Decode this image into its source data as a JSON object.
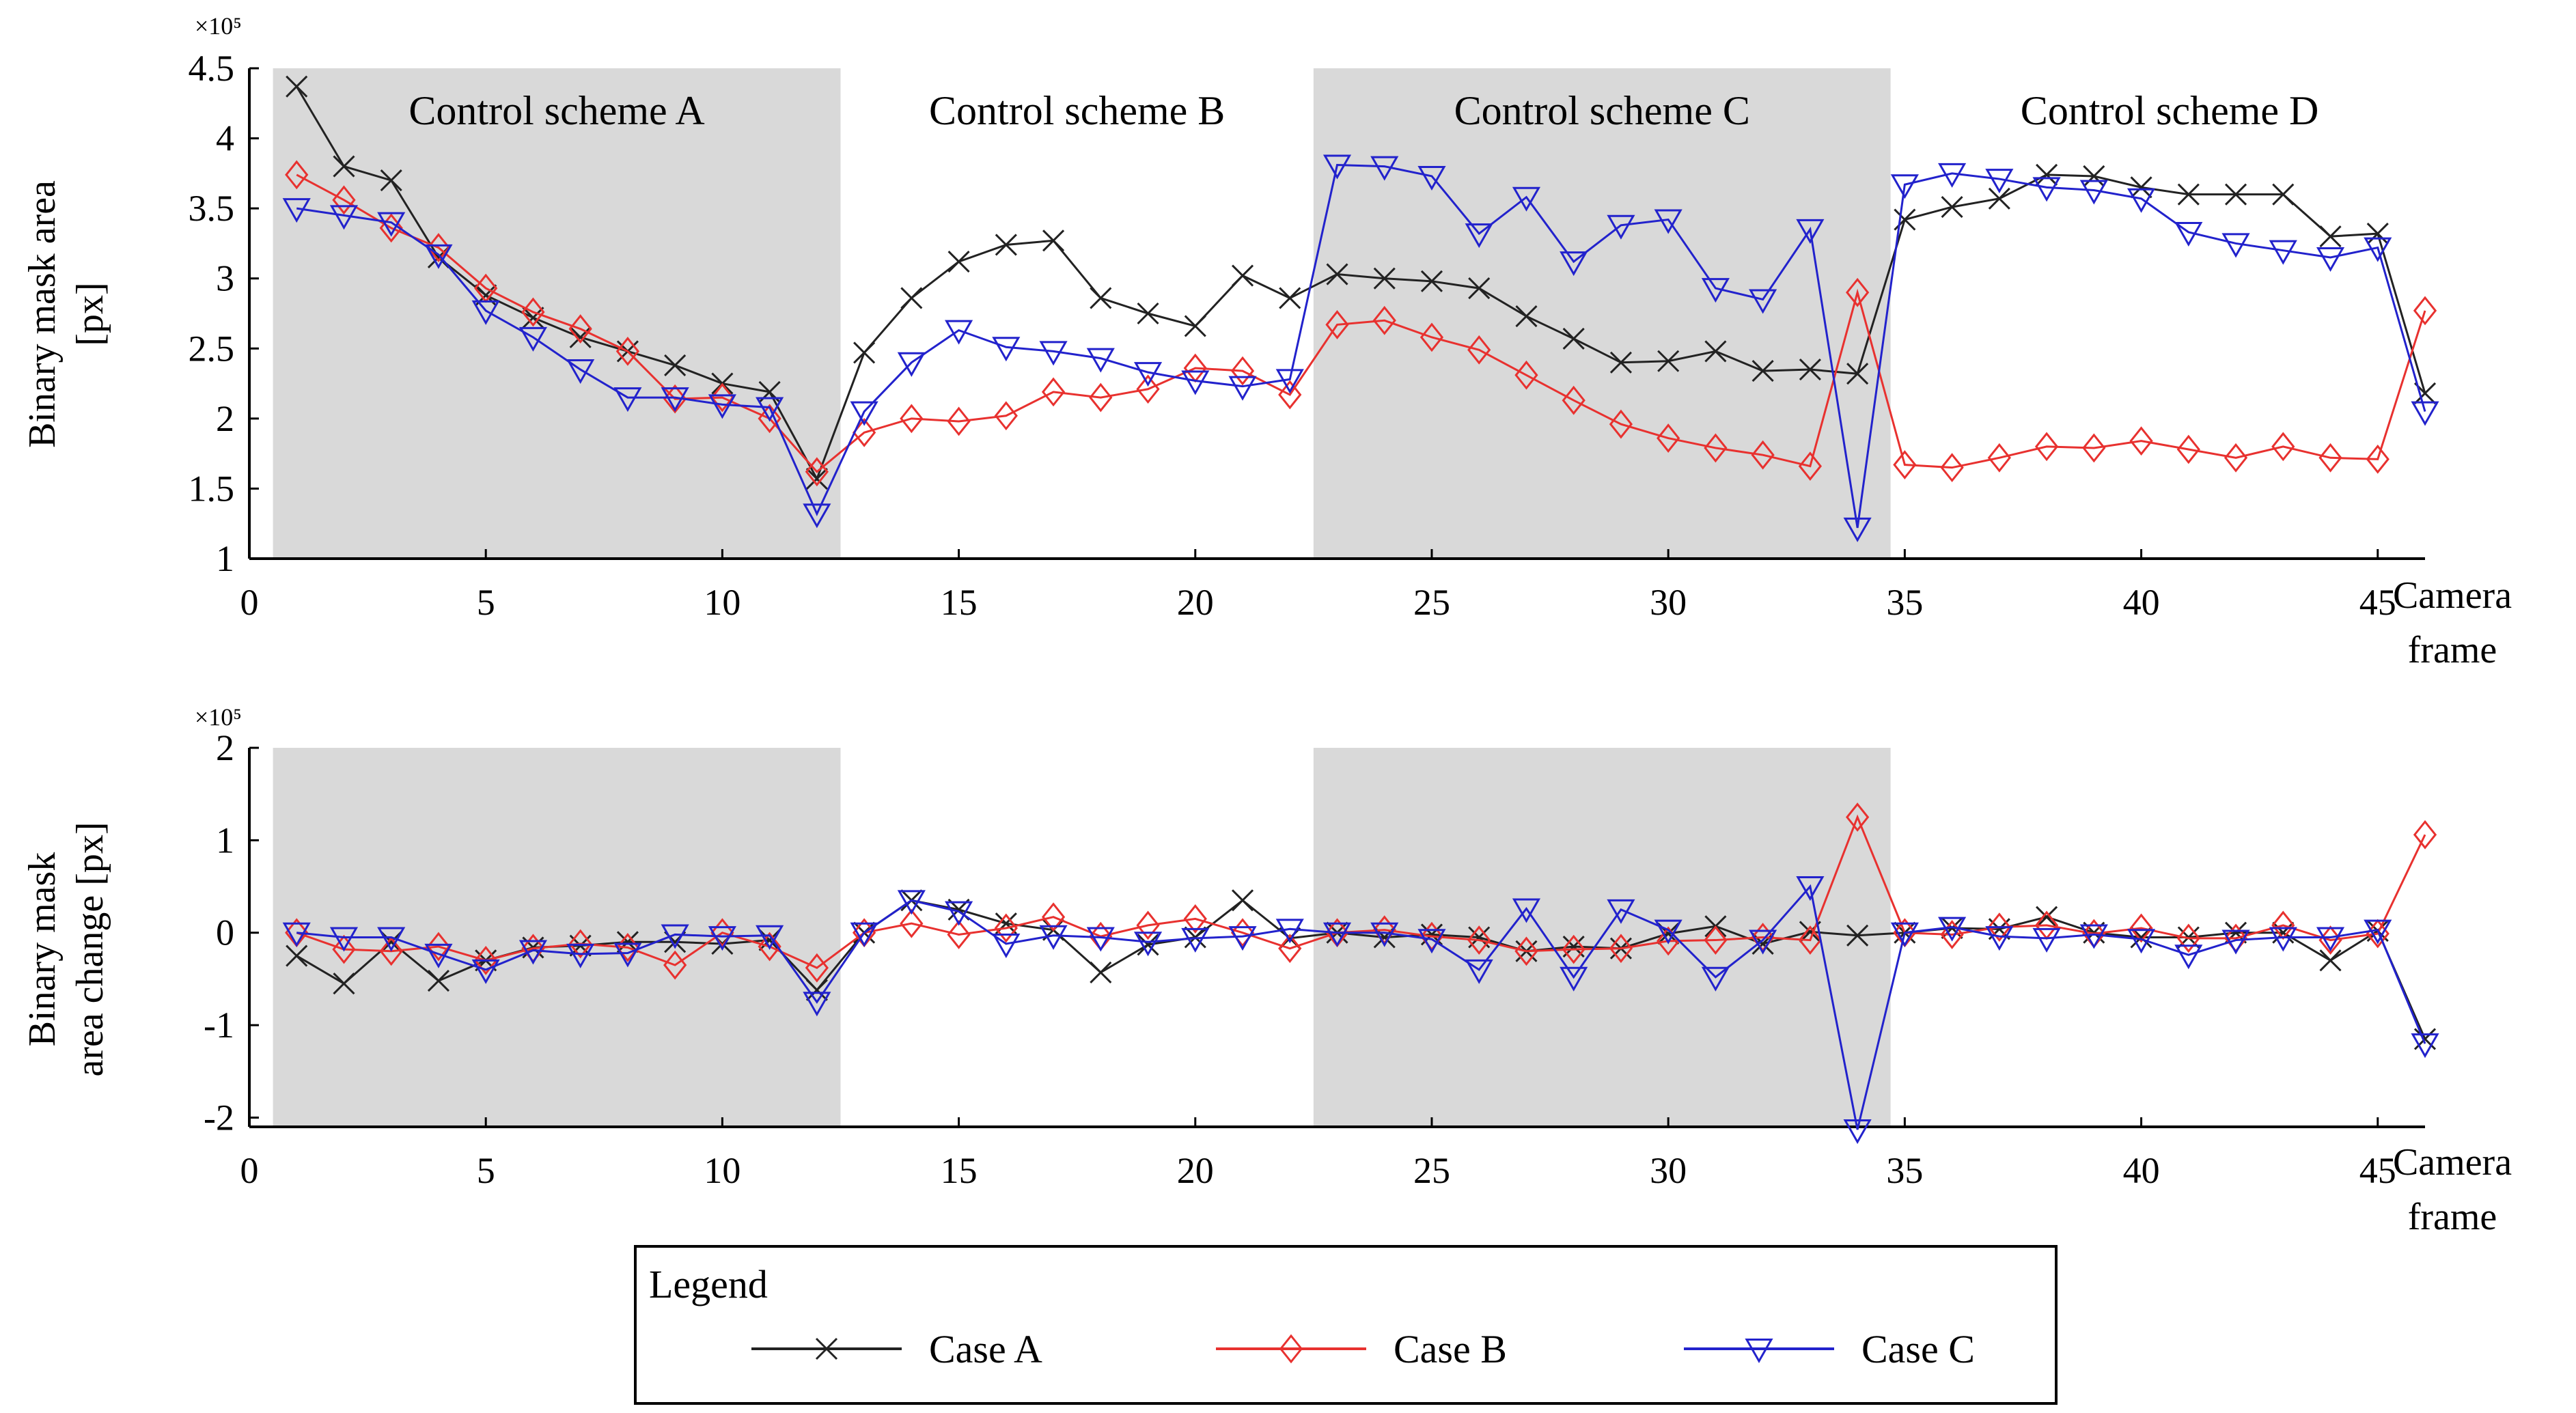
{
  "legend": {
    "title": "Legend",
    "entries": [
      {
        "name": "Case A",
        "color": "#222222",
        "marker": "x-marker"
      },
      {
        "name": "Case B",
        "color": "#e8312f",
        "marker": "diamond-marker"
      },
      {
        "name": "Case C",
        "color": "#2222cc",
        "marker": "triangle-down-marker"
      }
    ]
  },
  "colors": {
    "shade": "#d9d9d9",
    "caseA": "#222222",
    "caseB": "#e8312f",
    "caseC": "#2222cc"
  },
  "chart_data": [
    {
      "type": "line",
      "title": "",
      "xlabel": [
        "Camera",
        "frame"
      ],
      "ylabel": [
        "Binary mask area",
        "[px]"
      ],
      "yscale_label": "×10⁵",
      "xlim": [
        0,
        46
      ],
      "ylim": [
        1,
        4.5
      ],
      "xticks": [
        0,
        5,
        10,
        15,
        20,
        25,
        30,
        35,
        40,
        45
      ],
      "yticks": [
        1,
        1.5,
        2,
        2.5,
        3,
        3.5,
        4,
        4.5
      ],
      "ytick_labels": [
        "1",
        "1.5",
        "2",
        "2.5",
        "3",
        "3.5",
        "4",
        "4.5"
      ],
      "regions": [
        {
          "label": "Control scheme A",
          "from": 0.5,
          "to": 12.5,
          "shaded": true
        },
        {
          "label": "Control scheme B",
          "from": 12.5,
          "to": 22.5,
          "shaded": false
        },
        {
          "label": "Control scheme C",
          "from": 22.5,
          "to": 34.7,
          "shaded": true
        },
        {
          "label": "Control scheme D",
          "from": 34.7,
          "to": 46.5,
          "shaded": false
        }
      ],
      "x": [
        1,
        2,
        3,
        4,
        5,
        6,
        7,
        8,
        9,
        10,
        11,
        12,
        13,
        14,
        15,
        16,
        17,
        18,
        19,
        20,
        21,
        22,
        23,
        24,
        25,
        26,
        27,
        28,
        29,
        30,
        31,
        32,
        33,
        34,
        35,
        36,
        37,
        38,
        39,
        40,
        41,
        42,
        43,
        44,
        45,
        46
      ],
      "series": [
        {
          "name": "Case A",
          "values": [
            4.37,
            3.8,
            3.7,
            3.15,
            2.88,
            2.72,
            2.58,
            2.48,
            2.38,
            2.25,
            2.19,
            1.57,
            2.47,
            2.86,
            3.12,
            3.24,
            3.27,
            2.86,
            2.75,
            2.66,
            3.02,
            2.86,
            3.03,
            3.0,
            2.98,
            2.93,
            2.73,
            2.57,
            2.4,
            2.41,
            2.48,
            2.34,
            2.35,
            2.32,
            3.42,
            3.51,
            3.57,
            3.74,
            3.73,
            3.65,
            3.6,
            3.6,
            3.6,
            3.3,
            3.32,
            2.18
          ]
        },
        {
          "name": "Case B",
          "values": [
            3.74,
            3.56,
            3.36,
            3.22,
            2.93,
            2.76,
            2.64,
            2.48,
            2.14,
            2.15,
            2.0,
            1.62,
            1.9,
            2.0,
            1.98,
            2.02,
            2.19,
            2.15,
            2.21,
            2.36,
            2.34,
            2.17,
            2.67,
            2.7,
            2.58,
            2.49,
            2.31,
            2.13,
            1.96,
            1.86,
            1.79,
            1.74,
            1.66,
            2.9,
            1.67,
            1.65,
            1.72,
            1.8,
            1.79,
            1.84,
            1.78,
            1.72,
            1.8,
            1.72,
            1.71,
            2.77
          ]
        },
        {
          "name": "Case C",
          "values": [
            3.5,
            3.45,
            3.4,
            3.17,
            2.77,
            2.58,
            2.35,
            2.15,
            2.15,
            2.1,
            2.08,
            1.32,
            2.05,
            2.4,
            2.63,
            2.51,
            2.48,
            2.43,
            2.33,
            2.27,
            2.23,
            2.28,
            3.81,
            3.8,
            3.73,
            3.32,
            3.58,
            3.12,
            3.38,
            3.42,
            2.93,
            2.85,
            3.35,
            1.22,
            3.67,
            3.75,
            3.71,
            3.65,
            3.63,
            3.57,
            3.33,
            3.25,
            3.2,
            3.15,
            3.22,
            2.05
          ]
        }
      ]
    },
    {
      "type": "line",
      "title": "",
      "xlabel": [
        "Camera",
        "frame"
      ],
      "ylabel": [
        "Binary mask",
        "area change [px]"
      ],
      "yscale_label": "×10⁵",
      "xlim": [
        0,
        46
      ],
      "ylim": [
        -2.1,
        2
      ],
      "xticks": [
        0,
        5,
        10,
        15,
        20,
        25,
        30,
        35,
        40,
        45
      ],
      "yticks": [
        -2,
        -1,
        0,
        1,
        2
      ],
      "ytick_labels": [
        "-2",
        "-1",
        "0",
        "1",
        "2"
      ],
      "x": [
        1,
        2,
        3,
        4,
        5,
        6,
        7,
        8,
        9,
        10,
        11,
        12,
        13,
        14,
        15,
        16,
        17,
        18,
        19,
        20,
        21,
        22,
        23,
        24,
        25,
        26,
        27,
        28,
        29,
        30,
        31,
        32,
        33,
        34,
        35,
        36,
        37,
        38,
        39,
        40,
        41,
        42,
        43,
        44,
        45,
        46
      ],
      "series": [
        {
          "name": "Case A",
          "values": [
            -0.25,
            -0.55,
            -0.1,
            -0.52,
            -0.3,
            -0.16,
            -0.14,
            -0.1,
            -0.1,
            -0.12,
            -0.08,
            -0.62,
            0.0,
            0.35,
            0.25,
            0.1,
            0.03,
            -0.43,
            -0.13,
            -0.05,
            0.35,
            -0.06,
            0.0,
            -0.05,
            -0.02,
            -0.05,
            -0.2,
            -0.15,
            -0.17,
            -0.01,
            0.07,
            -0.12,
            0.01,
            -0.03,
            0.0,
            0.05,
            0.04,
            0.17,
            0.0,
            -0.05,
            -0.05,
            0.0,
            0.0,
            -0.3,
            0.02,
            -1.15
          ]
        },
        {
          "name": "Case B",
          "values": [
            0.0,
            -0.18,
            -0.2,
            -0.15,
            -0.3,
            -0.17,
            -0.12,
            -0.16,
            -0.35,
            0.0,
            -0.15,
            -0.38,
            0.0,
            0.1,
            -0.02,
            0.05,
            0.17,
            -0.04,
            0.08,
            0.15,
            0.0,
            -0.17,
            0.0,
            0.03,
            -0.04,
            -0.08,
            -0.2,
            -0.18,
            -0.17,
            -0.09,
            -0.08,
            -0.05,
            -0.08,
            1.25,
            0.0,
            -0.02,
            0.06,
            0.08,
            -0.01,
            0.05,
            -0.06,
            -0.06,
            0.08,
            -0.08,
            -0.01,
            1.06
          ]
        },
        {
          "name": "Case C",
          "values": [
            0.0,
            -0.05,
            -0.05,
            -0.23,
            -0.4,
            -0.19,
            -0.23,
            -0.22,
            -0.02,
            -0.04,
            -0.03,
            -0.75,
            0.0,
            0.35,
            0.23,
            -0.12,
            -0.03,
            -0.05,
            -0.1,
            -0.06,
            -0.04,
            0.04,
            0.0,
            0.0,
            -0.07,
            -0.4,
            0.26,
            -0.48,
            0.25,
            0.03,
            -0.48,
            -0.08,
            0.5,
            -2.13,
            0.0,
            0.06,
            -0.04,
            -0.06,
            -0.02,
            -0.07,
            -0.24,
            -0.08,
            -0.05,
            -0.05,
            0.03,
            -1.2
          ]
        }
      ]
    }
  ]
}
